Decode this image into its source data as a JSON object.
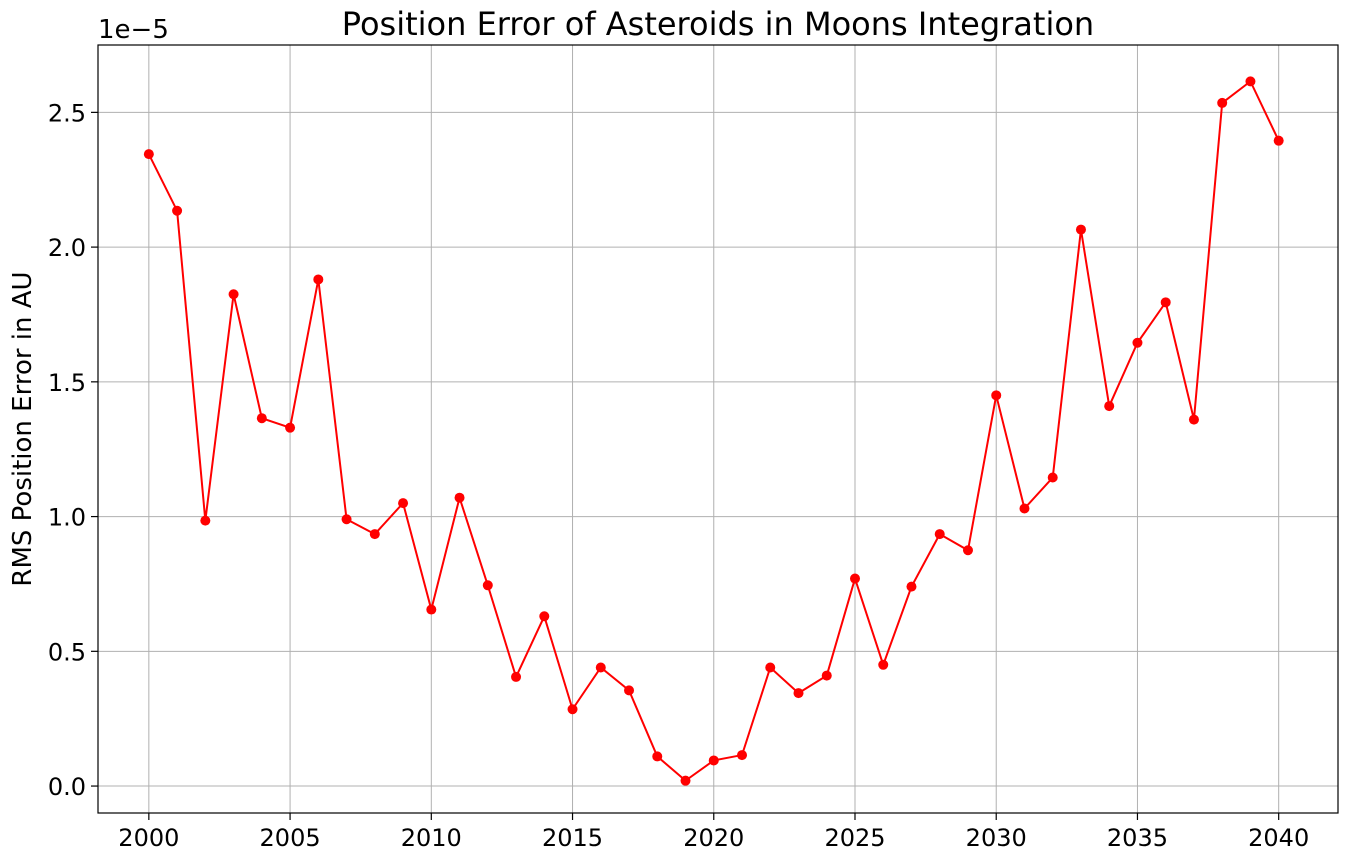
{
  "chart_data": {
    "type": "line",
    "title": "Position Error of Asteroids in Moons Integration",
    "xlabel": "",
    "ylabel": "RMS Position Error in AU",
    "y_offset_label": "1e−5",
    "xlim": [
      1998.2,
      2042.1
    ],
    "ylim": [
      -1e-06,
      2.75e-05
    ],
    "grid": true,
    "x_ticks": [
      2000,
      2005,
      2010,
      2015,
      2020,
      2025,
      2030,
      2035,
      2040
    ],
    "x_tick_labels": [
      "2000",
      "2005",
      "2010",
      "2015",
      "2020",
      "2025",
      "2030",
      "2035",
      "2040"
    ],
    "y_ticks": [
      0.0,
      5e-06,
      1e-05,
      1.5e-05,
      2e-05,
      2.5e-05
    ],
    "y_tick_labels": [
      "0.0",
      "0.5",
      "1.0",
      "1.5",
      "2.0",
      "2.5"
    ],
    "series": [
      {
        "color": "#ff0000",
        "marker": "circle",
        "x": [
          2000,
          2001,
          2002,
          2003,
          2004,
          2005,
          2006,
          2007,
          2008,
          2009,
          2010,
          2011,
          2012,
          2013,
          2014,
          2015,
          2016,
          2017,
          2018,
          2019,
          2020,
          2021,
          2022,
          2023,
          2024,
          2025,
          2026,
          2027,
          2028,
          2029,
          2030,
          2031,
          2032,
          2033,
          2034,
          2035,
          2036,
          2037,
          2038,
          2039,
          2040
        ],
        "y": [
          2.345e-05,
          2.135e-05,
          9.85e-06,
          1.825e-05,
          1.365e-05,
          1.33e-05,
          1.88e-05,
          9.9e-06,
          9.35e-06,
          1.05e-05,
          6.55e-06,
          1.07e-05,
          7.45e-06,
          4.05e-06,
          6.3e-06,
          2.85e-06,
          4.4e-06,
          3.55e-06,
          1.1e-06,
          2e-07,
          9.5e-07,
          1.15e-06,
          4.4e-06,
          3.45e-06,
          4.1e-06,
          7.7e-06,
          4.5e-06,
          7.4e-06,
          9.35e-06,
          8.75e-06,
          1.45e-05,
          1.03e-05,
          1.145e-05,
          2.065e-05,
          1.41e-05,
          1.645e-05,
          1.795e-05,
          1.36e-05,
          2.535e-05,
          2.615e-05,
          2.395e-05
        ]
      }
    ]
  }
}
